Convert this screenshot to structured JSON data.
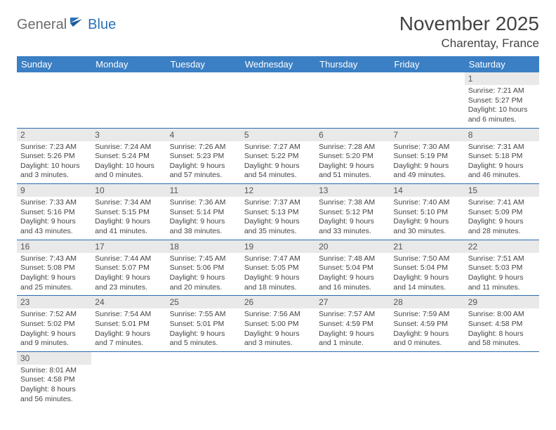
{
  "logo": {
    "part1": "General",
    "part2": "Blue"
  },
  "title": "November 2025",
  "location": "Charentay, France",
  "colors": {
    "header_bg": "#3b7fc4",
    "header_text": "#ffffff",
    "daynum_bg": "#e9e9e9",
    "border": "#2a6bb0",
    "logo_gray": "#6b6b6b",
    "logo_blue": "#2a71b8"
  },
  "weekdays": [
    "Sunday",
    "Monday",
    "Tuesday",
    "Wednesday",
    "Thursday",
    "Friday",
    "Saturday"
  ],
  "weeks": [
    [
      {
        "empty": true
      },
      {
        "empty": true
      },
      {
        "empty": true
      },
      {
        "empty": true
      },
      {
        "empty": true
      },
      {
        "empty": true
      },
      {
        "n": "1",
        "sr": "Sunrise: 7:21 AM",
        "ss": "Sunset: 5:27 PM",
        "dl": "Daylight: 10 hours and 6 minutes."
      }
    ],
    [
      {
        "n": "2",
        "sr": "Sunrise: 7:23 AM",
        "ss": "Sunset: 5:26 PM",
        "dl": "Daylight: 10 hours and 3 minutes."
      },
      {
        "n": "3",
        "sr": "Sunrise: 7:24 AM",
        "ss": "Sunset: 5:24 PM",
        "dl": "Daylight: 10 hours and 0 minutes."
      },
      {
        "n": "4",
        "sr": "Sunrise: 7:26 AM",
        "ss": "Sunset: 5:23 PM",
        "dl": "Daylight: 9 hours and 57 minutes."
      },
      {
        "n": "5",
        "sr": "Sunrise: 7:27 AM",
        "ss": "Sunset: 5:22 PM",
        "dl": "Daylight: 9 hours and 54 minutes."
      },
      {
        "n": "6",
        "sr": "Sunrise: 7:28 AM",
        "ss": "Sunset: 5:20 PM",
        "dl": "Daylight: 9 hours and 51 minutes."
      },
      {
        "n": "7",
        "sr": "Sunrise: 7:30 AM",
        "ss": "Sunset: 5:19 PM",
        "dl": "Daylight: 9 hours and 49 minutes."
      },
      {
        "n": "8",
        "sr": "Sunrise: 7:31 AM",
        "ss": "Sunset: 5:18 PM",
        "dl": "Daylight: 9 hours and 46 minutes."
      }
    ],
    [
      {
        "n": "9",
        "sr": "Sunrise: 7:33 AM",
        "ss": "Sunset: 5:16 PM",
        "dl": "Daylight: 9 hours and 43 minutes."
      },
      {
        "n": "10",
        "sr": "Sunrise: 7:34 AM",
        "ss": "Sunset: 5:15 PM",
        "dl": "Daylight: 9 hours and 41 minutes."
      },
      {
        "n": "11",
        "sr": "Sunrise: 7:36 AM",
        "ss": "Sunset: 5:14 PM",
        "dl": "Daylight: 9 hours and 38 minutes."
      },
      {
        "n": "12",
        "sr": "Sunrise: 7:37 AM",
        "ss": "Sunset: 5:13 PM",
        "dl": "Daylight: 9 hours and 35 minutes."
      },
      {
        "n": "13",
        "sr": "Sunrise: 7:38 AM",
        "ss": "Sunset: 5:12 PM",
        "dl": "Daylight: 9 hours and 33 minutes."
      },
      {
        "n": "14",
        "sr": "Sunrise: 7:40 AM",
        "ss": "Sunset: 5:10 PM",
        "dl": "Daylight: 9 hours and 30 minutes."
      },
      {
        "n": "15",
        "sr": "Sunrise: 7:41 AM",
        "ss": "Sunset: 5:09 PM",
        "dl": "Daylight: 9 hours and 28 minutes."
      }
    ],
    [
      {
        "n": "16",
        "sr": "Sunrise: 7:43 AM",
        "ss": "Sunset: 5:08 PM",
        "dl": "Daylight: 9 hours and 25 minutes."
      },
      {
        "n": "17",
        "sr": "Sunrise: 7:44 AM",
        "ss": "Sunset: 5:07 PM",
        "dl": "Daylight: 9 hours and 23 minutes."
      },
      {
        "n": "18",
        "sr": "Sunrise: 7:45 AM",
        "ss": "Sunset: 5:06 PM",
        "dl": "Daylight: 9 hours and 20 minutes."
      },
      {
        "n": "19",
        "sr": "Sunrise: 7:47 AM",
        "ss": "Sunset: 5:05 PM",
        "dl": "Daylight: 9 hours and 18 minutes."
      },
      {
        "n": "20",
        "sr": "Sunrise: 7:48 AM",
        "ss": "Sunset: 5:04 PM",
        "dl": "Daylight: 9 hours and 16 minutes."
      },
      {
        "n": "21",
        "sr": "Sunrise: 7:50 AM",
        "ss": "Sunset: 5:04 PM",
        "dl": "Daylight: 9 hours and 14 minutes."
      },
      {
        "n": "22",
        "sr": "Sunrise: 7:51 AM",
        "ss": "Sunset: 5:03 PM",
        "dl": "Daylight: 9 hours and 11 minutes."
      }
    ],
    [
      {
        "n": "23",
        "sr": "Sunrise: 7:52 AM",
        "ss": "Sunset: 5:02 PM",
        "dl": "Daylight: 9 hours and 9 minutes."
      },
      {
        "n": "24",
        "sr": "Sunrise: 7:54 AM",
        "ss": "Sunset: 5:01 PM",
        "dl": "Daylight: 9 hours and 7 minutes."
      },
      {
        "n": "25",
        "sr": "Sunrise: 7:55 AM",
        "ss": "Sunset: 5:01 PM",
        "dl": "Daylight: 9 hours and 5 minutes."
      },
      {
        "n": "26",
        "sr": "Sunrise: 7:56 AM",
        "ss": "Sunset: 5:00 PM",
        "dl": "Daylight: 9 hours and 3 minutes."
      },
      {
        "n": "27",
        "sr": "Sunrise: 7:57 AM",
        "ss": "Sunset: 4:59 PM",
        "dl": "Daylight: 9 hours and 1 minute."
      },
      {
        "n": "28",
        "sr": "Sunrise: 7:59 AM",
        "ss": "Sunset: 4:59 PM",
        "dl": "Daylight: 9 hours and 0 minutes."
      },
      {
        "n": "29",
        "sr": "Sunrise: 8:00 AM",
        "ss": "Sunset: 4:58 PM",
        "dl": "Daylight: 8 hours and 58 minutes."
      }
    ],
    [
      {
        "n": "30",
        "sr": "Sunrise: 8:01 AM",
        "ss": "Sunset: 4:58 PM",
        "dl": "Daylight: 8 hours and 56 minutes."
      },
      {
        "empty": true
      },
      {
        "empty": true
      },
      {
        "empty": true
      },
      {
        "empty": true
      },
      {
        "empty": true
      },
      {
        "empty": true
      }
    ]
  ]
}
